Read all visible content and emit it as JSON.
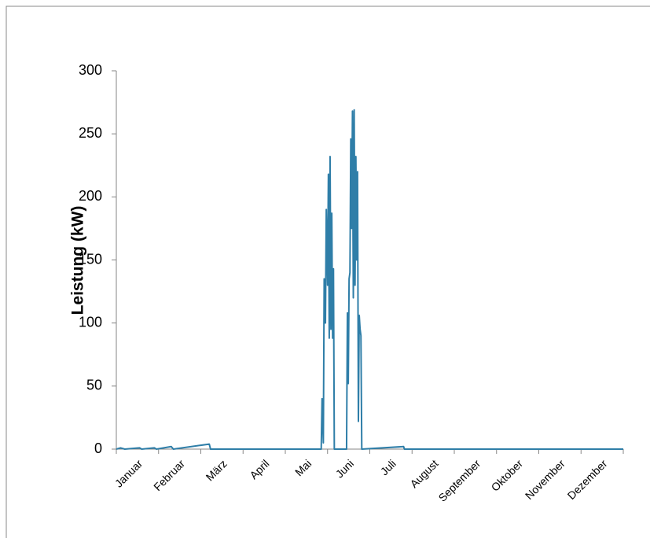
{
  "chart_data": {
    "type": "line",
    "y_label": "Leistung (kW)",
    "categories": [
      "Januar",
      "Februar",
      "März",
      "April",
      "Mai",
      "Juni",
      "Juli",
      "August",
      "September",
      "Oktober",
      "November",
      "Dezember"
    ],
    "xlim": [
      0,
      12
    ],
    "ylim": [
      0,
      300
    ],
    "yticks": [
      0,
      50,
      100,
      150,
      200,
      250,
      300
    ],
    "grid": false,
    "series": [
      {
        "color": "#2f7ea8",
        "x": [
          0,
          0.1,
          0.2,
          0.55,
          0.6,
          0.9,
          0.95,
          1.3,
          1.35,
          2.2,
          2.23,
          4.85,
          4.87,
          4.9,
          4.92,
          4.95,
          4.97,
          5.0,
          5.02,
          5.04,
          5.06,
          5.08,
          5.1,
          5.12,
          5.14,
          5.16,
          5.45,
          5.47,
          5.49,
          5.51,
          5.53,
          5.55,
          5.57,
          5.59,
          5.61,
          5.63,
          5.65,
          5.67,
          5.69,
          5.71,
          5.73,
          5.75,
          5.77,
          5.79,
          5.81,
          6.8,
          6.82,
          12
        ],
        "values": [
          0,
          1,
          0,
          1,
          0,
          1,
          0,
          2,
          0,
          4,
          0,
          0,
          40,
          5,
          135,
          100,
          190,
          130,
          218,
          88,
          232,
          95,
          187,
          88,
          143,
          0,
          0,
          108,
          52,
          135,
          140,
          246,
          175,
          268,
          120,
          269,
          130,
          232,
          150,
          220,
          22,
          106,
          95,
          90,
          0,
          2,
          0,
          0
        ]
      }
    ]
  }
}
